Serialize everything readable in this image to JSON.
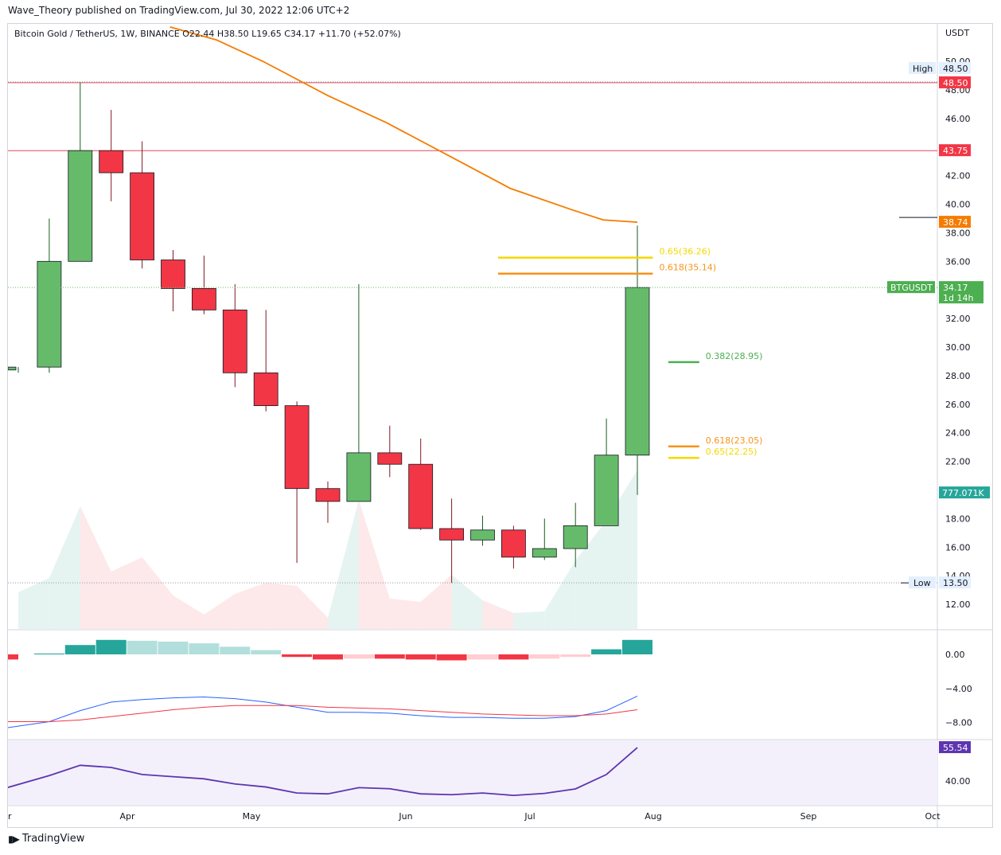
{
  "header": {
    "published": "Wave_Theory published on TradingView.com, Jul 30, 2022 12:06 UTC+2",
    "legend": "Bitcoin Gold / TetherUS, 1W, BINANCE  O22.44  H38.50  L19.65  C34.17  +11.70 (+52.07%)"
  },
  "footer": {
    "brand": "TradingView",
    "logo_icon": "tradingview-logo-icon"
  },
  "colors": {
    "up": "#66bb6a",
    "down": "#f23645",
    "ma": "#f57c00",
    "fib_gold": "#f5c400",
    "fib_orange": "#f7931a",
    "fib_green": "#4caf50",
    "res_line": "#e0495a",
    "macd": "#2962ff",
    "signal": "#f23645",
    "rsi": "#5e35b1",
    "grid": "#d1d4dc"
  },
  "chart_data": {
    "type": "candlestick",
    "x_labels": [
      "r",
      "Apr",
      "May",
      "Jun",
      "Jul",
      "Aug",
      "Sep",
      "Oct"
    ],
    "price_axis": {
      "unit": "USDT",
      "ylim": [
        10,
        52
      ],
      "ticks": [
        "12.00",
        "14.00",
        "16.00",
        "18.00",
        "22.00",
        "24.00",
        "26.00",
        "28.00",
        "30.00",
        "32.00",
        "36.00",
        "38.00",
        "40.00",
        "42.00",
        "46.00",
        "48.00",
        "50.00"
      ]
    },
    "candles": [
      {
        "o": 28.4,
        "h": 28.6,
        "l": 28.2,
        "c": 28.6
      },
      {
        "o": 28.6,
        "h": 39.0,
        "l": 28.2,
        "c": 36.0
      },
      {
        "o": 36.0,
        "h": 48.5,
        "l": 36.0,
        "c": 43.75
      },
      {
        "o": 43.75,
        "h": 46.6,
        "l": 40.2,
        "c": 42.2
      },
      {
        "o": 42.2,
        "h": 44.4,
        "l": 35.5,
        "c": 36.1
      },
      {
        "o": 36.1,
        "h": 36.8,
        "l": 32.5,
        "c": 34.1
      },
      {
        "o": 34.1,
        "h": 36.4,
        "l": 32.3,
        "c": 32.6
      },
      {
        "o": 32.6,
        "h": 34.4,
        "l": 27.2,
        "c": 28.2
      },
      {
        "o": 28.2,
        "h": 32.6,
        "l": 25.5,
        "c": 25.9
      },
      {
        "o": 25.9,
        "h": 26.2,
        "l": 14.9,
        "c": 20.1
      },
      {
        "o": 20.1,
        "h": 20.6,
        "l": 17.7,
        "c": 19.2
      },
      {
        "o": 19.2,
        "h": 34.4,
        "l": 19.2,
        "c": 22.6
      },
      {
        "o": 22.6,
        "h": 24.5,
        "l": 20.9,
        "c": 21.8
      },
      {
        "o": 21.8,
        "h": 23.6,
        "l": 17.2,
        "c": 17.3
      },
      {
        "o": 17.3,
        "h": 19.4,
        "l": 13.5,
        "c": 16.5
      },
      {
        "o": 16.5,
        "h": 18.2,
        "l": 16.1,
        "c": 17.2
      },
      {
        "o": 17.2,
        "h": 17.5,
        "l": 14.5,
        "c": 15.3
      },
      {
        "o": 15.3,
        "h": 18.0,
        "l": 15.1,
        "c": 15.9
      },
      {
        "o": 15.9,
        "h": 19.1,
        "l": 14.6,
        "c": 17.5
      },
      {
        "o": 17.5,
        "h": 25.0,
        "l": 17.5,
        "c": 22.44
      },
      {
        "o": 22.44,
        "h": 38.5,
        "l": 19.65,
        "c": 34.17
      }
    ],
    "volume": [
      12.5,
      13.4,
      17.9,
      13.8,
      14.7,
      12.3,
      11.1,
      12.4,
      13.1,
      12.9,
      10.9,
      18.3,
      12.1,
      11.9,
      13.6,
      12.0,
      11.2,
      11.3,
      14.5,
      17.0,
      20.2
    ],
    "moving_average": [
      {
        "x": 4.9,
        "y": 52.4
      },
      {
        "x": 6.4,
        "y": 51.5
      },
      {
        "x": 7.9,
        "y": 50.0
      },
      {
        "x": 10.0,
        "y": 47.6
      },
      {
        "x": 11.9,
        "y": 45.7
      },
      {
        "x": 13.9,
        "y": 43.4
      },
      {
        "x": 15.9,
        "y": 41.1
      },
      {
        "x": 17.9,
        "y": 39.6
      },
      {
        "x": 18.9,
        "y": 38.9
      },
      {
        "x": 20.0,
        "y": 38.74
      }
    ],
    "horizontal_lines": [
      {
        "value": 48.5,
        "label": "48.50",
        "color": "#f23645",
        "tag": "High",
        "tag_value": "48.50"
      },
      {
        "value": 43.75,
        "label": "43.75",
        "color": "#f23645"
      }
    ],
    "low_marker": {
      "tag": "Low",
      "value": "13.50",
      "price": 13.5
    },
    "ma_label": "38.74",
    "current": {
      "symbol": "BTGUSDT",
      "price": "34.17",
      "countdown": "1d 14h"
    },
    "volume_label": "777.071K",
    "fibonacci": [
      {
        "label": "0.65(36.26)",
        "value": 36.26,
        "color": "#f5d800",
        "x0": 15.5,
        "x1": 20.5
      },
      {
        "label": "0.618(35.14)",
        "value": 35.14,
        "color": "#f7931a",
        "x0": 15.5,
        "x1": 20.5
      },
      {
        "label": "0.382(28.95)",
        "value": 28.95,
        "color": "#4caf50",
        "x0": 21.0,
        "x1": 22.0
      },
      {
        "label": "0.618(23.05)",
        "value": 23.05,
        "color": "#f7931a",
        "x0": 21.0,
        "x1": 22.0
      },
      {
        "label": "0.65(22.25)",
        "value": 22.25,
        "color": "#f5d800",
        "x0": 21.0,
        "x1": 22.0
      }
    ],
    "macd": {
      "ticks": [
        "0.00",
        "−4.00",
        "−8.00"
      ],
      "ylim": [
        -10,
        2.5
      ],
      "histogram": [
        -0.6,
        0.1,
        1.1,
        1.7,
        1.6,
        1.5,
        1.3,
        0.9,
        0.5,
        -0.3,
        -0.6,
        -0.5,
        -0.5,
        -0.6,
        -0.7,
        -0.6,
        -0.6,
        -0.5,
        -0.3,
        0.6,
        1.7
      ],
      "macd_line": [
        -8.6,
        -7.9,
        -6.6,
        -5.6,
        -5.3,
        -5.1,
        -5.0,
        -5.2,
        -5.6,
        -6.2,
        -6.8,
        -6.8,
        -6.9,
        -7.2,
        -7.4,
        -7.4,
        -7.5,
        -7.5,
        -7.3,
        -6.6,
        -4.9
      ],
      "signal_line": [
        -7.9,
        -7.9,
        -7.7,
        -7.3,
        -6.9,
        -6.5,
        -6.2,
        -6.0,
        -6.0,
        -6.0,
        -6.2,
        -6.3,
        -6.4,
        -6.6,
        -6.8,
        -7.0,
        -7.1,
        -7.2,
        -7.2,
        -7.0,
        -6.5
      ]
    },
    "rsi": {
      "ticks": [
        "40.00"
      ],
      "value_label": "55.54",
      "ylim": [
        28,
        60
      ],
      "values": [
        37.0,
        42.5,
        47.3,
        46.3,
        43.0,
        42.0,
        41.0,
        38.6,
        37.2,
        34.4,
        34.0,
        36.9,
        36.4,
        34.0,
        33.6,
        34.4,
        33.3,
        34.2,
        36.3,
        43.0,
        55.54
      ]
    }
  }
}
